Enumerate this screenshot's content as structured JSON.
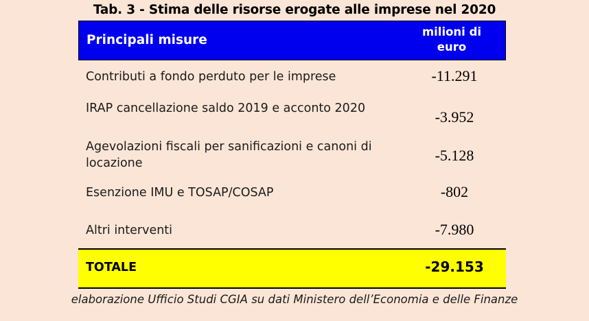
{
  "title": "Tab. 3 - Stima delle risorse erogate alle imprese nel 2020",
  "header": {
    "col1": "Principali misure",
    "col2": "milioni di euro"
  },
  "rows": [
    {
      "label": "Contributi a fondo perduto per le imprese",
      "value": "-11.291"
    },
    {
      "label": "IRAP cancellazione saldo 2019 e acconto 2020",
      "value": "-3.952"
    },
    {
      "label": "Agevolazioni fiscali per sanificazioni e canoni di locazione",
      "value": "-5.128"
    },
    {
      "label": "Esenzione IMU e TOSAP/COSAP",
      "value": "-802"
    },
    {
      "label": "Altri interventi",
      "value": "-7.980"
    }
  ],
  "total": {
    "label": "TOTALE",
    "value": "-29.153"
  },
  "source": "elaborazione Ufficio Studi CGIA su dati Ministero dell’Economia e delle Finanze",
  "colors": {
    "background": "#fbe5d6",
    "header_bg": "#0000ee",
    "total_bg": "#ffff00"
  }
}
